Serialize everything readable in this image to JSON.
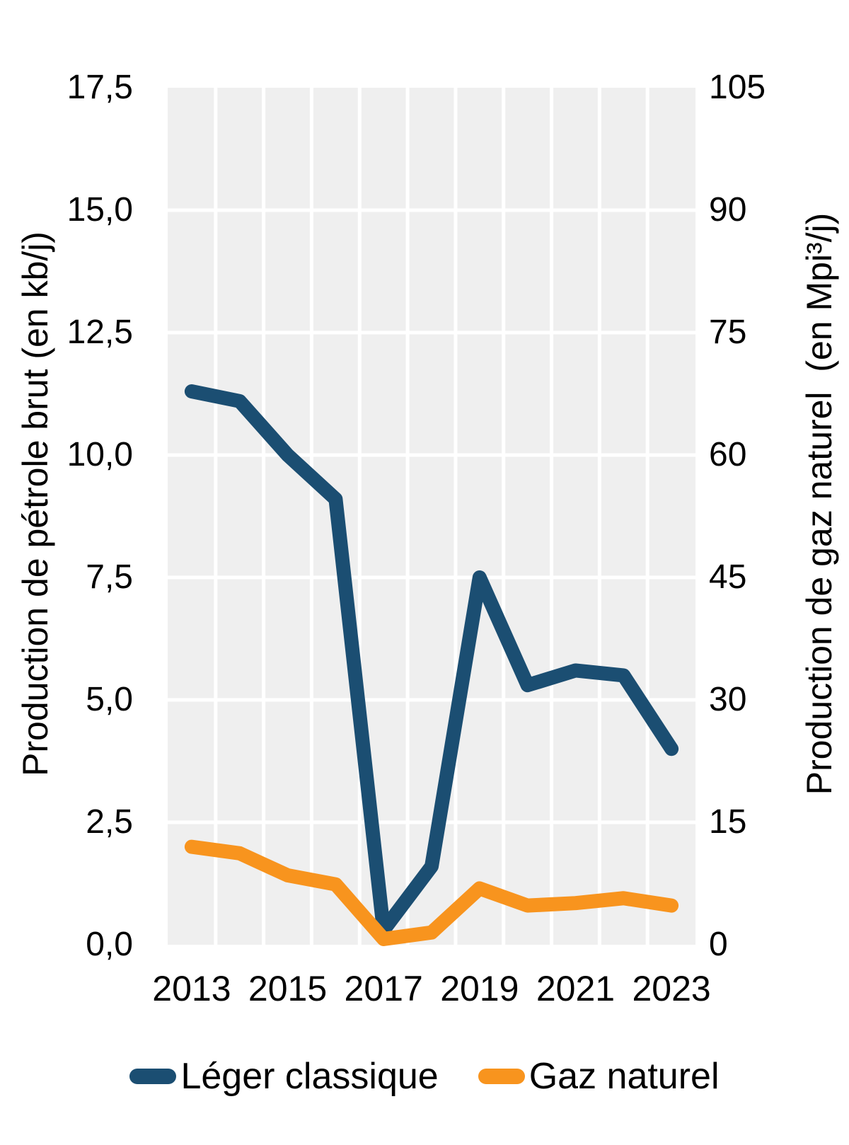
{
  "chart_data": {
    "type": "line",
    "categories": [
      2013,
      2014,
      2015,
      2016,
      2017,
      2018,
      2019,
      2020,
      2021,
      2022,
      2023
    ],
    "x_tick_labels": [
      "2013",
      "2015",
      "2017",
      "2019",
      "2021",
      "2023"
    ],
    "series": [
      {
        "name": "Léger classique",
        "axis": "left",
        "color": "#1B4E72",
        "values": [
          11.3,
          11.1,
          10.0,
          9.1,
          0.3,
          1.6,
          7.5,
          5.3,
          5.6,
          5.5,
          4.0
        ]
      },
      {
        "name": "Gaz naturel",
        "axis": "right",
        "color": "#F8941E",
        "values": [
          12.0,
          11.2,
          8.5,
          7.4,
          0.7,
          1.5,
          6.9,
          4.8,
          5.1,
          5.7,
          4.8
        ]
      }
    ],
    "left_axis": {
      "title": "Production de pétrole brut (en kb/j)",
      "min": 0,
      "max": 17.5,
      "ticks": [
        {
          "value": 17.5,
          "label": "17,5"
        },
        {
          "value": 15.0,
          "label": "15,0"
        },
        {
          "value": 12.5,
          "label": "12,5"
        },
        {
          "value": 10.0,
          "label": "10,0"
        },
        {
          "value": 7.5,
          "label": "7,5"
        },
        {
          "value": 5.0,
          "label": "5,0"
        },
        {
          "value": 2.5,
          "label": "2,5"
        },
        {
          "value": 0.0,
          "label": "0,0"
        }
      ]
    },
    "right_axis": {
      "title": "Production de gaz naturel  (en Mpi³/j)",
      "min": 0,
      "max": 105,
      "ticks": [
        {
          "value": 105,
          "label": "105"
        },
        {
          "value": 90,
          "label": "90"
        },
        {
          "value": 75,
          "label": "75"
        },
        {
          "value": 60,
          "label": "60"
        },
        {
          "value": 45,
          "label": "45"
        },
        {
          "value": 30,
          "label": "30"
        },
        {
          "value": 15,
          "label": "15"
        },
        {
          "value": 0,
          "label": "0"
        }
      ]
    },
    "grid": true,
    "legend_position": "bottom",
    "plot_background": "#EFEFEF",
    "gridline_color": "#FFFFFF"
  }
}
